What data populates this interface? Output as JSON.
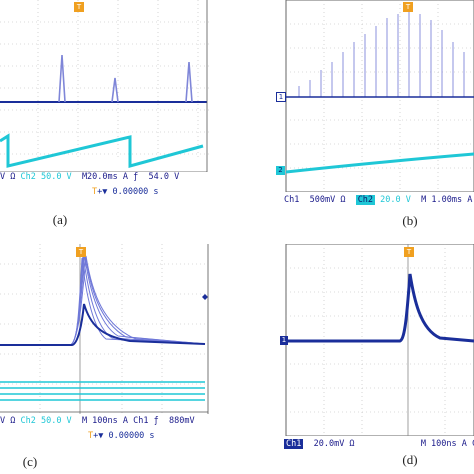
{
  "panels": {
    "a": {
      "caption": "(a)",
      "ch1_scale_fragment": "V Ω",
      "ch2_label": "Ch2",
      "ch2_scale": "50.0 V",
      "timebase": "M20.0ms",
      "trigger_mode": "A",
      "trigger_symbol": "ƒ",
      "trigger_level": "54.0 V",
      "trigger_position": "+▼ 0.00000 s"
    },
    "b": {
      "caption": "(b)",
      "ch1_label": "Ch1",
      "ch1_scale": "500mV Ω",
      "ch2_label": "Ch2",
      "ch2_scale": "20.0 V",
      "timebase": "M 1.00ms",
      "trigger_mode": "A",
      "trigger_tail": "C",
      "marker_ch1": "1",
      "marker_ch2": "2"
    },
    "c": {
      "caption": "(c)",
      "ch1_scale_fragment": "V Ω",
      "ch2_label": "Ch2",
      "ch2_scale": "50.0 V",
      "timebase": "M 100ns",
      "trigger_mode": "A",
      "trigger_channel": "Ch1",
      "trigger_symbol": "ƒ",
      "trigger_level": "880mV",
      "trigger_position": "+▼ 0.00000 s"
    },
    "d": {
      "caption": "(d)",
      "ch1_label": "Ch1",
      "ch1_scale": "20.0mV Ω",
      "timebase": "M 100ns",
      "trigger_mode": "A",
      "trigger_tail": "C",
      "marker_ch1": "1"
    }
  },
  "colors": {
    "trace_ch1": "#1a2e9a",
    "trace_ch2": "#1fc7d6",
    "grid": "#b8b8b8",
    "trigger_marker": "#f0a020"
  }
}
